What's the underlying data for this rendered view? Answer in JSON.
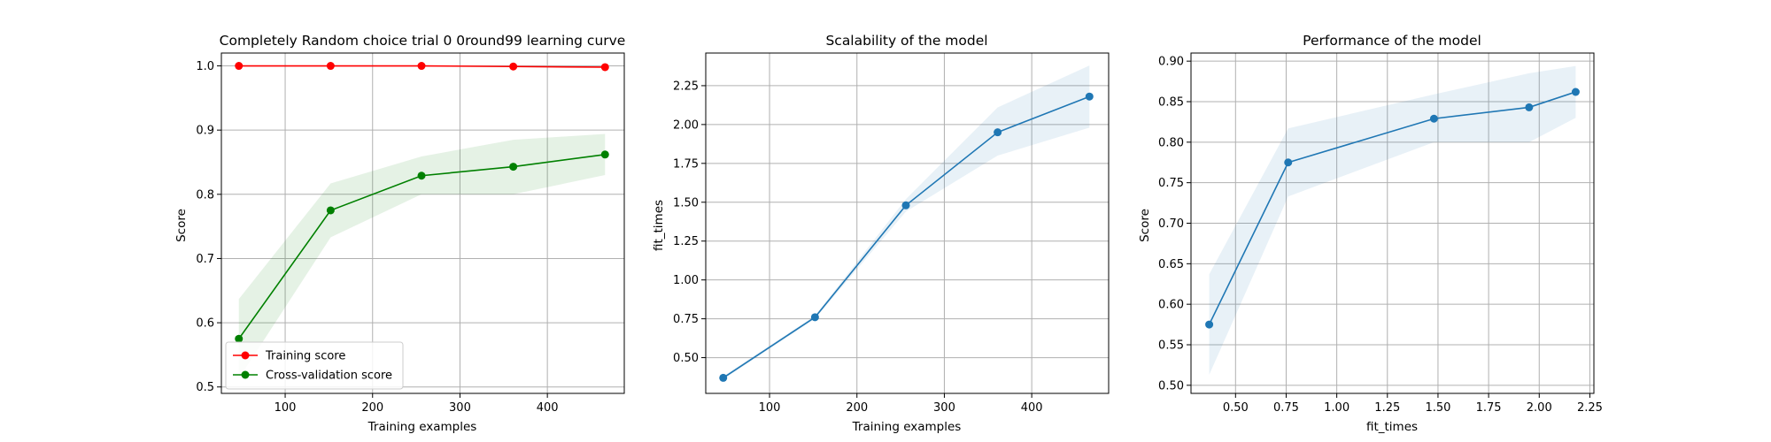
{
  "chart_data": [
    {
      "type": "line",
      "title": "Completely Random choice trial 0 0round99 learning curve",
      "xlabel": "Training examples",
      "ylabel": "Score",
      "xlim": [
        27,
        488
      ],
      "ylim": [
        0.49,
        1.02
      ],
      "xticks": [
        100,
        200,
        300,
        400
      ],
      "yticks": [
        0.5,
        0.6,
        0.7,
        0.8,
        0.9,
        1.0
      ],
      "ytick_labels": [
        "0.5",
        "0.6",
        "0.7",
        "0.8",
        "0.9",
        "1.0"
      ],
      "grid": true,
      "legend_position": "lower-left",
      "x": [
        47,
        152,
        256,
        361,
        466
      ],
      "series": [
        {
          "name": "Training score",
          "color": "#ff0000",
          "values": [
            1.0,
            1.0,
            1.0,
            0.999,
            0.998
          ],
          "band_lower": [
            1.0,
            1.0,
            1.0,
            0.999,
            0.997
          ],
          "band_upper": [
            1.0,
            1.0,
            1.0,
            0.999,
            0.999
          ]
        },
        {
          "name": "Cross-validation score",
          "color": "#008000",
          "values": [
            0.575,
            0.775,
            0.829,
            0.843,
            0.862
          ],
          "band_lower": [
            0.513,
            0.733,
            0.8,
            0.8,
            0.83
          ],
          "band_upper": [
            0.637,
            0.817,
            0.859,
            0.885,
            0.894
          ]
        }
      ]
    },
    {
      "type": "line",
      "title": "Scalability of the model",
      "xlabel": "Training examples",
      "ylabel": "fit_times",
      "xlim": [
        27,
        488
      ],
      "ylim": [
        0.27,
        2.46
      ],
      "xticks": [
        100,
        200,
        300,
        400
      ],
      "yticks": [
        0.5,
        0.75,
        1.0,
        1.25,
        1.5,
        1.75,
        2.0,
        2.25
      ],
      "ytick_labels": [
        "0.50",
        "0.75",
        "1.00",
        "1.25",
        "1.50",
        "1.75",
        "2.00",
        "2.25"
      ],
      "grid": true,
      "x": [
        47,
        152,
        256,
        361,
        466
      ],
      "series": [
        {
          "color": "#1f77b4",
          "values": [
            0.37,
            0.76,
            1.48,
            1.95,
            2.18
          ],
          "band_lower": [
            0.36,
            0.75,
            1.44,
            1.8,
            1.98
          ],
          "band_upper": [
            0.38,
            0.77,
            1.52,
            2.11,
            2.38
          ]
        }
      ]
    },
    {
      "type": "line",
      "title": "Performance of the model",
      "xlabel": "fit_times",
      "ylabel": "Score",
      "xlim": [
        0.28,
        2.27
      ],
      "ylim": [
        0.49,
        0.91
      ],
      "xticks": [
        0.5,
        0.75,
        1.0,
        1.25,
        1.5,
        1.75,
        2.0,
        2.25
      ],
      "xtick_labels": [
        "0.50",
        "0.75",
        "1.00",
        "1.25",
        "1.50",
        "1.75",
        "2.00",
        "2.25"
      ],
      "yticks": [
        0.5,
        0.55,
        0.6,
        0.65,
        0.7,
        0.75,
        0.8,
        0.85,
        0.9
      ],
      "ytick_labels": [
        "0.50",
        "0.55",
        "0.60",
        "0.65",
        "0.70",
        "0.75",
        "0.80",
        "0.85",
        "0.90"
      ],
      "grid": true,
      "x": [
        0.37,
        0.76,
        1.48,
        1.95,
        2.18
      ],
      "series": [
        {
          "color": "#1f77b4",
          "values": [
            0.575,
            0.775,
            0.829,
            0.843,
            0.862
          ],
          "band_lower": [
            0.513,
            0.733,
            0.8,
            0.8,
            0.83
          ],
          "band_upper": [
            0.637,
            0.817,
            0.859,
            0.885,
            0.894
          ]
        }
      ]
    }
  ]
}
